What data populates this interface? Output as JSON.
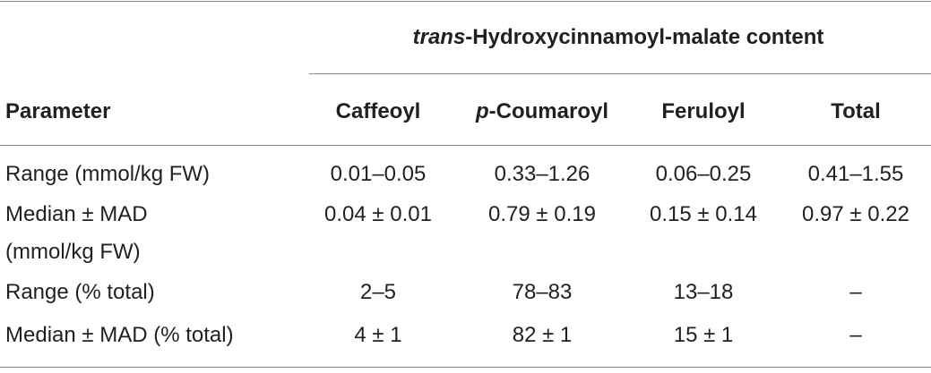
{
  "table": {
    "group_header": {
      "italic": "trans",
      "rest": "-Hydroxycinnamoyl-malate content"
    },
    "columns": [
      {
        "text": "Parameter"
      },
      {
        "text": "Caffeoyl"
      },
      {
        "italic": "p",
        "text": "-Coumaroyl"
      },
      {
        "text": "Feruloyl"
      },
      {
        "text": "Total"
      }
    ],
    "rows": [
      {
        "parameter": [
          "Range (mmol/kg FW)"
        ],
        "cells": [
          "0.01–0.05",
          "0.33–1.26",
          "0.06–0.25",
          "0.41–1.55"
        ]
      },
      {
        "parameter": [
          "Median ± MAD",
          "(mmol/kg FW)"
        ],
        "cells": [
          "0.04 ± 0.01",
          "0.79 ± 0.19",
          "0.15 ± 0.14",
          "0.97 ± 0.22"
        ]
      },
      {
        "parameter": [
          "Range (% total)"
        ],
        "cells": [
          "2–5",
          "78–83",
          "13–18",
          "–"
        ]
      },
      {
        "parameter": [
          "Median ± MAD (% total)"
        ],
        "cells": [
          "4 ± 1",
          "82 ± 1",
          "15 ± 1",
          "–"
        ]
      }
    ]
  }
}
